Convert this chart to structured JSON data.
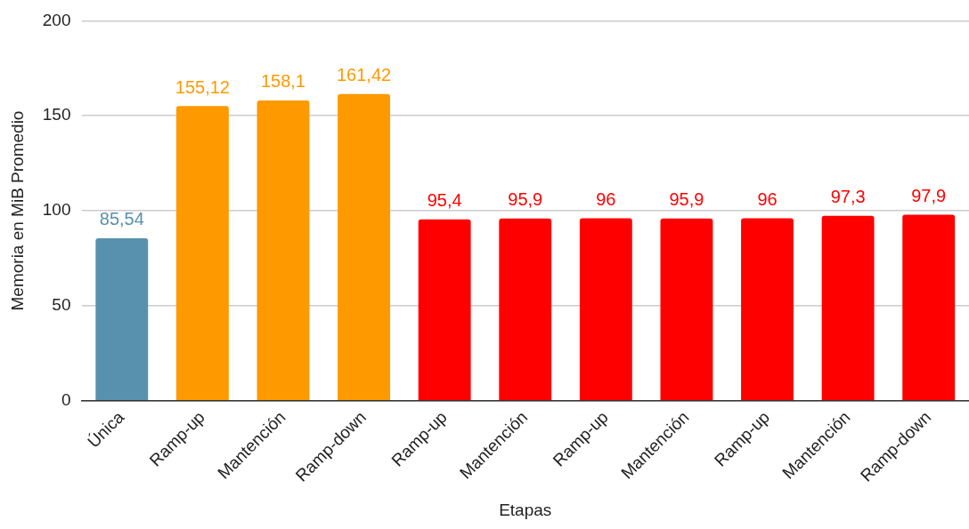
{
  "chart_data": {
    "type": "bar",
    "xlabel": "Etapas",
    "ylabel": "Memoria en MiB Promedio",
    "categories": [
      "Única",
      "Ramp-up",
      "Mantención",
      "Ramp-down",
      "Ramp-up",
      "Mantención",
      "Ramp-up",
      "Mantención",
      "Ramp-up",
      "Mantención",
      "Ramp-down"
    ],
    "values": [
      85.54,
      155.12,
      158.1,
      161.42,
      95.4,
      95.9,
      96,
      95.9,
      96,
      97.3,
      97.9
    ],
    "colors": [
      "#5891ad",
      "#ff9900",
      "#ff9900",
      "#ff9900",
      "#ff0000",
      "#ff0000",
      "#ff0000",
      "#ff0000",
      "#ff0000",
      "#ff0000",
      "#ff0000"
    ],
    "value_labels": [
      "85,54",
      "155,12",
      "158,1",
      "161,42",
      "95,4",
      "95,9",
      "96",
      "95,9",
      "96",
      "97,3",
      "97,9"
    ],
    "ylim": [
      0,
      200
    ],
    "yticks": [
      0,
      50,
      100,
      150,
      200
    ],
    "grid": "y",
    "legend": false
  }
}
